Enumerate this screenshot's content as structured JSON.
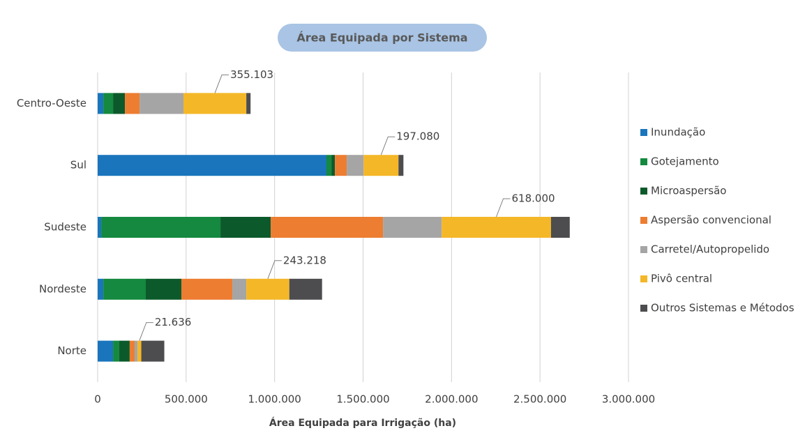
{
  "chart_data": {
    "type": "stacked_barh",
    "title": "Área Equipada por Sistema",
    "x_label": "Área Equipada para Irrigação (ha)",
    "categories": [
      "Centro-Oeste",
      "Sul",
      "Sudeste",
      "Nordeste",
      "Norte"
    ],
    "series": [
      {
        "name": "Inundação",
        "color": "#1a75bc",
        "values": [
          32000,
          1293000,
          20000,
          32000,
          87000
        ]
      },
      {
        "name": "Gotejamento",
        "color": "#14893f",
        "values": [
          55000,
          28000,
          674000,
          240000,
          35000
        ]
      },
      {
        "name": "Microaspersão",
        "color": "#0c5a2b",
        "values": [
          67000,
          20000,
          284000,
          201000,
          59000
        ]
      },
      {
        "name": "Aspersão convencional",
        "color": "#ed7d31",
        "values": [
          83000,
          67000,
          635000,
          288000,
          28000
        ]
      },
      {
        "name": "Carretel/Autopropelido",
        "color": "#a5a5a5",
        "values": [
          248000,
          95000,
          331000,
          79000,
          16000
        ]
      },
      {
        "name": "Pivô central",
        "color": "#f4b728",
        "values": [
          355103,
          197080,
          618000,
          243218,
          21636
        ],
        "value_labels": [
          "355.103",
          "197.080",
          "618.000",
          "243.218",
          "21.636"
        ]
      },
      {
        "name": "Outros Sistemas e Métodos",
        "color": "#4d4d4f",
        "values": [
          24000,
          28000,
          106000,
          185000,
          130000
        ]
      }
    ],
    "xlim": [
      0,
      3000000
    ],
    "xticks": [
      0,
      {
        "value": 500000,
        "label": "500.000"
      },
      {
        "value": 1000000,
        "label": "1.000.000"
      },
      {
        "value": 1500000,
        "label": "1.500.000"
      },
      {
        "value": 2000000,
        "label": "2.000.000"
      },
      {
        "value": 2500000,
        "label": "2.500.000"
      },
      {
        "value": 3000000,
        "label": "3.000.000"
      }
    ],
    "grid": true,
    "legend": "right"
  }
}
